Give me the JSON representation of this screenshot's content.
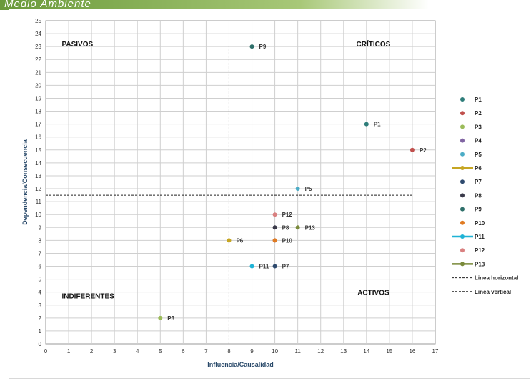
{
  "header": {
    "title": "Medio Ambiente"
  },
  "chart_data": {
    "type": "scatter",
    "xlabel": "Influencia/Causalidad",
    "ylabel": "Dependencia/Consecuencia",
    "xlim": [
      0,
      17
    ],
    "ylim": [
      0,
      25
    ],
    "grid": true,
    "legend": "right",
    "quadrants": {
      "pasivos": "PASIVOS",
      "criticos": "CRÍTICOS",
      "indiferentes": "INDIFERENTES",
      "activos": "ACTIVOS"
    },
    "series": [
      {
        "name": "P1",
        "x": 14,
        "y": 17,
        "color": "#2e7d7a",
        "marker": "dot"
      },
      {
        "name": "P2",
        "x": 16,
        "y": 15,
        "color": "#c0504d",
        "marker": "dot"
      },
      {
        "name": "P3",
        "x": 5,
        "y": 2,
        "color": "#9bbb59",
        "marker": "dot"
      },
      {
        "name": "P4",
        "x": 10,
        "y": 8,
        "color": "#8064a2",
        "marker": "dot"
      },
      {
        "name": "P5",
        "x": 11,
        "y": 12,
        "color": "#4bacc6",
        "marker": "dot"
      },
      {
        "name": "P6",
        "x": 8,
        "y": 8,
        "color": "#c6a623",
        "marker": "line"
      },
      {
        "name": "P7",
        "x": 10,
        "y": 6,
        "color": "#2e4a6e",
        "marker": "dot"
      },
      {
        "name": "P8",
        "x": 10,
        "y": 9,
        "color": "#3a3a4a",
        "marker": "dot"
      },
      {
        "name": "P9",
        "x": 9,
        "y": 23,
        "color": "#2e6f6a",
        "marker": "dot"
      },
      {
        "name": "P10",
        "x": 10,
        "y": 8,
        "color": "#e07b22",
        "marker": "dot"
      },
      {
        "name": "P11",
        "x": 9,
        "y": 6,
        "color": "#1fb3d6",
        "marker": "line"
      },
      {
        "name": "P12",
        "x": 10,
        "y": 10,
        "color": "#d98080",
        "marker": "dot"
      },
      {
        "name": "P13",
        "x": 11,
        "y": 9,
        "color": "#7a8a3a",
        "marker": "line"
      }
    ],
    "point_labels": [
      {
        "series": "P1",
        "text": "P1"
      },
      {
        "series": "P2",
        "text": "P2"
      },
      {
        "series": "P3",
        "text": "P3"
      },
      {
        "series": "P5",
        "text": "P5"
      },
      {
        "series": "P6",
        "text": "P6"
      },
      {
        "series": "P7",
        "text": "P7"
      },
      {
        "series": "P8",
        "text": "P8"
      },
      {
        "series": "P9",
        "text": "P9"
      },
      {
        "series": "P10",
        "text": "P10"
      },
      {
        "series": "P11",
        "text": "P11"
      },
      {
        "series": "P12",
        "text": "P12"
      },
      {
        "series": "P13",
        "text": "P13"
      }
    ],
    "reference_lines": [
      {
        "name": "Linea horizontal",
        "axis": "y",
        "value": 11.5
      },
      {
        "name": "Linea vertical",
        "axis": "x",
        "value": 8,
        "from": 0,
        "to": 23
      }
    ]
  }
}
